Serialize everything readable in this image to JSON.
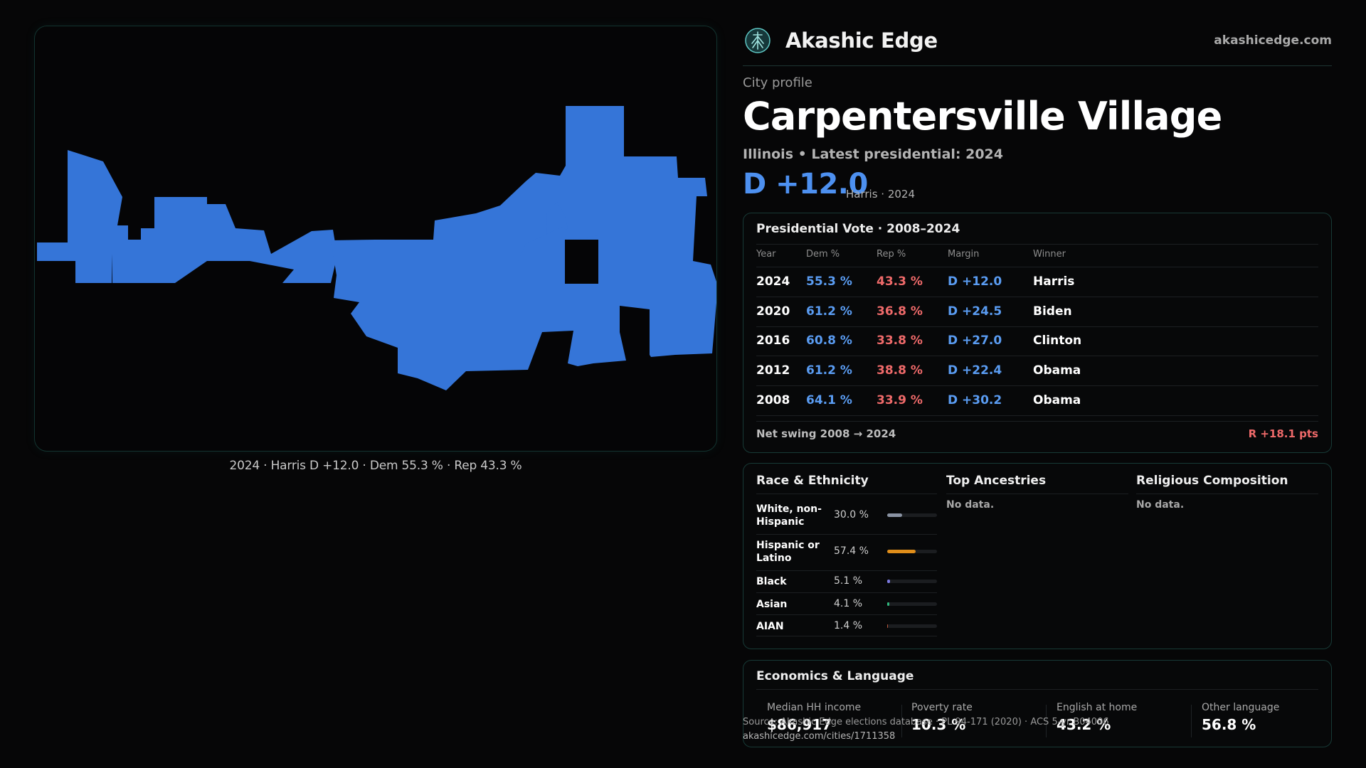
{
  "map": {
    "caption": "2024 · Harris D +12.0 · Dem 55.3 % · Rep 43.3 %",
    "fill_color": "#3575d8"
  },
  "brand": {
    "name": "Akashic Edge",
    "url": "akashicedge.com",
    "logo_icon": "tree-of-life-icon"
  },
  "profile": {
    "kicker": "City profile",
    "city": "Carpentersville Village",
    "subline": "Illinois • Latest presidential: 2024",
    "margin": "D +12.0",
    "margin_note": "Harris · 2024"
  },
  "vote_table": {
    "title": "Presidential Vote · 2008–2024",
    "headers": [
      "Year",
      "Dem %",
      "Rep %",
      "Margin",
      "Winner"
    ],
    "rows": [
      {
        "year": "2024",
        "dem": "55.3 %",
        "rep": "43.3 %",
        "margin": "D +12.0",
        "winner": "Harris"
      },
      {
        "year": "2020",
        "dem": "61.2 %",
        "rep": "36.8 %",
        "margin": "D +24.5",
        "winner": "Biden"
      },
      {
        "year": "2016",
        "dem": "60.8 %",
        "rep": "33.8 %",
        "margin": "D +27.0",
        "winner": "Clinton"
      },
      {
        "year": "2012",
        "dem": "61.2 %",
        "rep": "38.8 %",
        "margin": "D +22.4",
        "winner": "Obama"
      },
      {
        "year": "2008",
        "dem": "64.1 %",
        "rep": "33.9 %",
        "margin": "D +30.2",
        "winner": "Obama"
      }
    ],
    "net_swing_label": "Net swing 2008 → 2024",
    "net_swing_value": "R +18.1 pts"
  },
  "demographics": {
    "race_title": "Race & Ethnicity",
    "race": [
      {
        "label": "White, non-Hispanic",
        "pct_text": "30.0 %",
        "value": 30.0,
        "color": "#8a93a3"
      },
      {
        "label": "Hispanic or Latino",
        "pct_text": "57.4 %",
        "value": 57.4,
        "color": "#e08e1a"
      },
      {
        "label": "Black",
        "pct_text": "5.1 %",
        "value": 5.1,
        "color": "#7b79e0"
      },
      {
        "label": "Asian",
        "pct_text": "4.1 %",
        "value": 4.1,
        "color": "#2fb67c"
      },
      {
        "label": "AIAN",
        "pct_text": "1.4 %",
        "value": 1.4,
        "color": "#b8553a"
      }
    ],
    "ancestry_title": "Top Ancestries",
    "ancestry_empty": "No data.",
    "religion_title": "Religious Composition",
    "religion_empty": "No data."
  },
  "economics": {
    "title": "Economics & Language",
    "items": [
      {
        "label": "Median HH income",
        "value": "$86,917"
      },
      {
        "label": "Poverty rate",
        "value": "10.3 %"
      },
      {
        "label": "English at home",
        "value": "43.2 %"
      },
      {
        "label": "Other language",
        "value": "56.8 %"
      }
    ]
  },
  "source": {
    "line1": "Source: Akashic Edge elections database · PL 94-171 (2020) · ACS 5-yr B04006",
    "line2": "akashicedge.com/cities/1711358"
  }
}
